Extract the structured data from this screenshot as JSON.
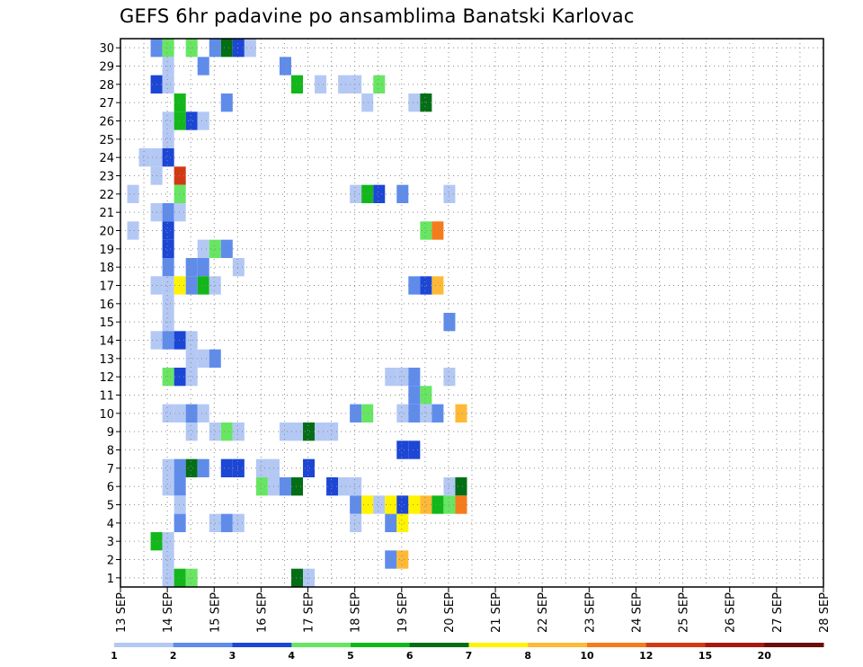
{
  "chart_data": {
    "type": "heatmap",
    "title": "GEFS 6hr padavine po ansamblima Banatski Karlovac",
    "x_tick_labels": [
      "13 SEP",
      "14 SEP",
      "15 SEP",
      "16 SEP",
      "17 SEP",
      "18 SEP",
      "19 SEP",
      "20 SEP",
      "21 SEP",
      "22 SEP",
      "23 SEP",
      "24 SEP",
      "25 SEP",
      "26 SEP",
      "27 SEP",
      "28 SEP"
    ],
    "y_tick_labels": [
      "1",
      "2",
      "3",
      "4",
      "5",
      "6",
      "7",
      "8",
      "9",
      "10",
      "11",
      "12",
      "13",
      "14",
      "15",
      "16",
      "17",
      "18",
      "19",
      "20",
      "21",
      "22",
      "23",
      "24",
      "25",
      "26",
      "27",
      "28",
      "29",
      "30"
    ],
    "x_unit": "days since 13 SEP",
    "xlim": [
      0,
      15
    ],
    "ylim": [
      0.5,
      30.5
    ],
    "grid": true,
    "colorbar": {
      "labels": [
        "1",
        "2",
        "3",
        "4",
        "5",
        "6",
        "7",
        "8",
        "10",
        "12",
        "15",
        "20"
      ],
      "colors": [
        "#b4c8f4",
        "#5f8ceb",
        "#1c46d6",
        "#67e662",
        "#12b71a",
        "#036e16",
        "#fff400",
        "#ffb935",
        "#f57c1b",
        "#d23a14",
        "#a61910",
        "#6a0d0d"
      ]
    },
    "cells": [
      [
        0.5,
        30,
        "#5f8ceb"
      ],
      [
        0.75,
        30,
        "#67e662"
      ],
      [
        1.25,
        30,
        "#67e662"
      ],
      [
        1.75,
        30,
        "#5f8ceb"
      ],
      [
        2.0,
        30,
        "#036e16"
      ],
      [
        2.25,
        30,
        "#1c46d6"
      ],
      [
        2.5,
        30,
        "#b4c8f4"
      ],
      [
        0.75,
        29,
        "#b4c8f4"
      ],
      [
        1.5,
        29,
        "#5f8ceb"
      ],
      [
        3.25,
        29,
        "#5f8ceb"
      ],
      [
        0.5,
        28,
        "#1c46d6"
      ],
      [
        0.75,
        28,
        "#b4c8f4"
      ],
      [
        3.5,
        28,
        "#12b71a"
      ],
      [
        4.0,
        28,
        "#b4c8f4"
      ],
      [
        4.5,
        28,
        "#b4c8f4"
      ],
      [
        4.75,
        28,
        "#b4c8f4"
      ],
      [
        5.25,
        28,
        "#67e662"
      ],
      [
        1.0,
        27,
        "#12b71a"
      ],
      [
        2.0,
        27,
        "#5f8ceb"
      ],
      [
        5.0,
        27,
        "#b4c8f4"
      ],
      [
        6.0,
        27,
        "#b4c8f4"
      ],
      [
        6.25,
        27,
        "#036e16"
      ],
      [
        0.75,
        26,
        "#b4c8f4"
      ],
      [
        1.0,
        26,
        "#12b71a"
      ],
      [
        1.25,
        26,
        "#1c46d6"
      ],
      [
        1.5,
        26,
        "#b4c8f4"
      ],
      [
        0.75,
        25,
        "#b4c8f4"
      ],
      [
        0.25,
        24,
        "#b4c8f4"
      ],
      [
        0.5,
        24,
        "#b4c8f4"
      ],
      [
        0.75,
        24,
        "#1c46d6"
      ],
      [
        0.5,
        23,
        "#b4c8f4"
      ],
      [
        1.0,
        23,
        "#d23a14"
      ],
      [
        0.0,
        22,
        "#b4c8f4"
      ],
      [
        1.0,
        22,
        "#67e662"
      ],
      [
        4.75,
        22,
        "#b4c8f4"
      ],
      [
        5.0,
        22,
        "#12b71a"
      ],
      [
        5.25,
        22,
        "#1c46d6"
      ],
      [
        5.75,
        22,
        "#5f8ceb"
      ],
      [
        6.75,
        22,
        "#b4c8f4"
      ],
      [
        0.5,
        21,
        "#b4c8f4"
      ],
      [
        0.75,
        21,
        "#5f8ceb"
      ],
      [
        1.0,
        21,
        "#b4c8f4"
      ],
      [
        0.0,
        20,
        "#b4c8f4"
      ],
      [
        0.75,
        20,
        "#1c46d6"
      ],
      [
        6.25,
        20,
        "#67e662"
      ],
      [
        6.5,
        20,
        "#f57c1b"
      ],
      [
        0.75,
        19,
        "#1c46d6"
      ],
      [
        1.5,
        19,
        "#b4c8f4"
      ],
      [
        1.75,
        19,
        "#67e662"
      ],
      [
        2.0,
        19,
        "#5f8ceb"
      ],
      [
        0.75,
        18,
        "#5f8ceb"
      ],
      [
        1.25,
        18,
        "#5f8ceb"
      ],
      [
        1.5,
        18,
        "#5f8ceb"
      ],
      [
        2.25,
        18,
        "#b4c8f4"
      ],
      [
        0.5,
        17,
        "#b4c8f4"
      ],
      [
        0.75,
        17,
        "#b4c8f4"
      ],
      [
        1.0,
        17,
        "#fff400"
      ],
      [
        1.25,
        17,
        "#5f8ceb"
      ],
      [
        1.5,
        17,
        "#12b71a"
      ],
      [
        1.75,
        17,
        "#b4c8f4"
      ],
      [
        6.0,
        17,
        "#5f8ceb"
      ],
      [
        6.25,
        17,
        "#1c46d6"
      ],
      [
        6.5,
        17,
        "#ffb935"
      ],
      [
        0.75,
        16,
        "#b4c8f4"
      ],
      [
        0.75,
        15,
        "#b4c8f4"
      ],
      [
        6.75,
        15,
        "#5f8ceb"
      ],
      [
        0.5,
        14,
        "#b4c8f4"
      ],
      [
        0.75,
        14,
        "#5f8ceb"
      ],
      [
        1.0,
        14,
        "#1c46d6"
      ],
      [
        1.25,
        14,
        "#b4c8f4"
      ],
      [
        1.25,
        13,
        "#b4c8f4"
      ],
      [
        1.5,
        13,
        "#b4c8f4"
      ],
      [
        1.75,
        13,
        "#5f8ceb"
      ],
      [
        0.75,
        12,
        "#67e662"
      ],
      [
        1.0,
        12,
        "#1c46d6"
      ],
      [
        1.25,
        12,
        "#b4c8f4"
      ],
      [
        5.5,
        12,
        "#b4c8f4"
      ],
      [
        5.75,
        12,
        "#b4c8f4"
      ],
      [
        6.0,
        12,
        "#5f8ceb"
      ],
      [
        6.75,
        12,
        "#b4c8f4"
      ],
      [
        6.0,
        11,
        "#5f8ceb"
      ],
      [
        6.25,
        11,
        "#67e662"
      ],
      [
        0.75,
        10,
        "#b4c8f4"
      ],
      [
        1.0,
        10,
        "#b4c8f4"
      ],
      [
        1.25,
        10,
        "#5f8ceb"
      ],
      [
        1.5,
        10,
        "#b4c8f4"
      ],
      [
        4.75,
        10,
        "#5f8ceb"
      ],
      [
        5.0,
        10,
        "#67e662"
      ],
      [
        5.75,
        10,
        "#b4c8f4"
      ],
      [
        6.0,
        10,
        "#5f8ceb"
      ],
      [
        6.25,
        10,
        "#b4c8f4"
      ],
      [
        6.5,
        10,
        "#5f8ceb"
      ],
      [
        7.0,
        10,
        "#ffb935"
      ],
      [
        1.25,
        9,
        "#b4c8f4"
      ],
      [
        1.75,
        9,
        "#b4c8f4"
      ],
      [
        2.0,
        9,
        "#67e662"
      ],
      [
        2.25,
        9,
        "#b4c8f4"
      ],
      [
        3.25,
        9,
        "#b4c8f4"
      ],
      [
        3.5,
        9,
        "#b4c8f4"
      ],
      [
        3.75,
        9,
        "#036e16"
      ],
      [
        4.0,
        9,
        "#b4c8f4"
      ],
      [
        4.25,
        9,
        "#b4c8f4"
      ],
      [
        5.75,
        8,
        "#1c46d6"
      ],
      [
        6.0,
        8,
        "#1c46d6"
      ],
      [
        0.75,
        7,
        "#b4c8f4"
      ],
      [
        1.0,
        7,
        "#5f8ceb"
      ],
      [
        1.25,
        7,
        "#036e16"
      ],
      [
        1.5,
        7,
        "#5f8ceb"
      ],
      [
        2.0,
        7,
        "#1c46d6"
      ],
      [
        2.25,
        7,
        "#1c46d6"
      ],
      [
        2.75,
        7,
        "#b4c8f4"
      ],
      [
        3.0,
        7,
        "#b4c8f4"
      ],
      [
        3.75,
        7,
        "#1c46d6"
      ],
      [
        0.75,
        6,
        "#b4c8f4"
      ],
      [
        1.0,
        6,
        "#5f8ceb"
      ],
      [
        2.75,
        6,
        "#67e662"
      ],
      [
        3.0,
        6,
        "#b4c8f4"
      ],
      [
        3.25,
        6,
        "#5f8ceb"
      ],
      [
        3.5,
        6,
        "#036e16"
      ],
      [
        4.25,
        6,
        "#1c46d6"
      ],
      [
        4.5,
        6,
        "#b4c8f4"
      ],
      [
        4.75,
        6,
        "#b4c8f4"
      ],
      [
        6.75,
        6,
        "#b4c8f4"
      ],
      [
        7.0,
        6,
        "#036e16"
      ],
      [
        1.0,
        5,
        "#b4c8f4"
      ],
      [
        4.75,
        5,
        "#5f8ceb"
      ],
      [
        5.0,
        5,
        "#fff400"
      ],
      [
        5.25,
        5,
        "#b4c8f4"
      ],
      [
        5.5,
        5,
        "#fff400"
      ],
      [
        5.75,
        5,
        "#1c46d6"
      ],
      [
        6.0,
        5,
        "#fff400"
      ],
      [
        6.25,
        5,
        "#ffb935"
      ],
      [
        6.5,
        5,
        "#12b71a"
      ],
      [
        6.75,
        5,
        "#67e662"
      ],
      [
        7.0,
        5,
        "#f57c1b"
      ],
      [
        1.0,
        4,
        "#5f8ceb"
      ],
      [
        1.75,
        4,
        "#b4c8f4"
      ],
      [
        2.0,
        4,
        "#5f8ceb"
      ],
      [
        2.25,
        4,
        "#b4c8f4"
      ],
      [
        4.75,
        4,
        "#b4c8f4"
      ],
      [
        5.5,
        4,
        "#5f8ceb"
      ],
      [
        5.75,
        4,
        "#fff400"
      ],
      [
        0.5,
        3,
        "#12b71a"
      ],
      [
        0.75,
        3,
        "#b4c8f4"
      ],
      [
        0.75,
        2,
        "#b4c8f4"
      ],
      [
        5.5,
        2,
        "#5f8ceb"
      ],
      [
        5.75,
        2,
        "#ffb935"
      ],
      [
        0.75,
        1,
        "#b4c8f4"
      ],
      [
        1.0,
        1,
        "#12b71a"
      ],
      [
        1.25,
        1,
        "#67e662"
      ],
      [
        3.5,
        1,
        "#036e16"
      ],
      [
        3.75,
        1,
        "#b4c8f4"
      ]
    ]
  }
}
